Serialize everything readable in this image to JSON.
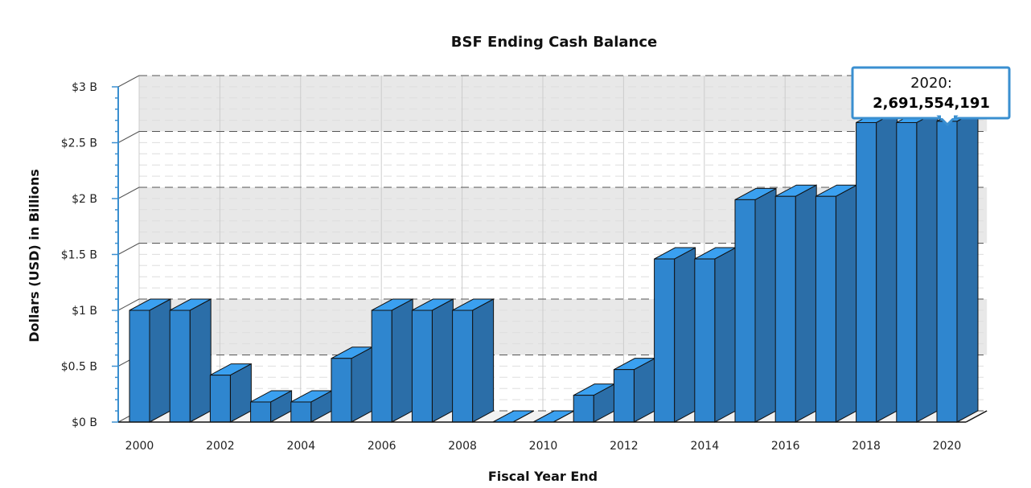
{
  "chart_data": {
    "type": "bar",
    "title": "BSF Ending Cash Balance",
    "xlabel": "Fiscal Year End",
    "ylabel": "Dollars (USD) in Billions",
    "categories": [
      "2000",
      "2001",
      "2002",
      "2003",
      "2004",
      "2005",
      "2006",
      "2007",
      "2008",
      "2009",
      "2010",
      "2011",
      "2012",
      "2013",
      "2014",
      "2015",
      "2016",
      "2017",
      "2018",
      "2019",
      "2020"
    ],
    "values": [
      1.0,
      1.0,
      0.42,
      0.18,
      0.18,
      0.57,
      1.0,
      1.0,
      1.0,
      0.0,
      0.0,
      0.24,
      0.47,
      1.46,
      1.46,
      1.99,
      2.02,
      2.02,
      2.68,
      2.68,
      2.691554191
    ],
    "ylim": [
      0,
      3
    ],
    "y_ticks": [
      "$0 B",
      "$0.5 B",
      "$1 B",
      "$1.5 B",
      "$2 B",
      "$2.5 B",
      "$3 B"
    ],
    "x_tick_labels": [
      "2000",
      "2002",
      "2004",
      "2006",
      "2008",
      "2010",
      "2012",
      "2014",
      "2016",
      "2018",
      "2020"
    ],
    "grid": true,
    "bar_color": "#2f86cf",
    "bar_side_color": "#2b6ea8",
    "bar_top_color": "#3aa0f0",
    "tooltip": {
      "line1": "2020:",
      "line2": "2,691,554,191",
      "border_color": "#3a8fd0"
    }
  }
}
